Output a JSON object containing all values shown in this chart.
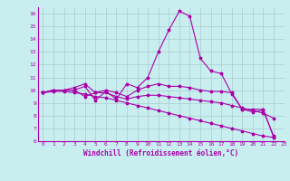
{
  "background_color": "#c8eef0",
  "grid_color": "#aacccc",
  "line_color": "#aa00aa",
  "marker": "*",
  "xlabel": "Windchill (Refroidissement éolien,°C)",
  "xlim": [
    -0.5,
    23
  ],
  "ylim": [
    6,
    16.5
  ],
  "xticks": [
    0,
    1,
    2,
    3,
    4,
    5,
    6,
    7,
    8,
    9,
    10,
    11,
    12,
    13,
    14,
    15,
    16,
    17,
    18,
    19,
    20,
    21,
    22,
    23
  ],
  "yticks": [
    6,
    7,
    8,
    9,
    10,
    11,
    12,
    13,
    14,
    15,
    16
  ],
  "series": [
    {
      "x": [
        0,
        1,
        2,
        3,
        4,
        5,
        6,
        7,
        8,
        9,
        10,
        11,
        12,
        13,
        14,
        15,
        16,
        17,
        18,
        19,
        20,
        21,
        22
      ],
      "y": [
        9.8,
        10.0,
        10.0,
        10.0,
        10.3,
        9.2,
        9.9,
        9.3,
        10.5,
        10.2,
        11.0,
        13.0,
        14.7,
        16.2,
        15.8,
        12.5,
        11.5,
        11.3,
        9.7,
        8.5,
        8.5,
        8.5,
        6.3
      ]
    },
    {
      "x": [
        0,
        1,
        2,
        3,
        4,
        5,
        6,
        7,
        8,
        9,
        10,
        11,
        12,
        13,
        14,
        15,
        16,
        17,
        18,
        19,
        20,
        21,
        22
      ],
      "y": [
        9.8,
        10.0,
        10.0,
        10.2,
        10.5,
        9.8,
        10.0,
        9.8,
        9.5,
        10.0,
        10.3,
        10.5,
        10.3,
        10.3,
        10.2,
        10.0,
        9.9,
        9.9,
        9.8,
        8.5,
        8.3,
        8.4,
        6.4
      ]
    },
    {
      "x": [
        0,
        1,
        2,
        3,
        4,
        5,
        6,
        7,
        8,
        9,
        10,
        11,
        12,
        13,
        14,
        15,
        16,
        17,
        18,
        19,
        20,
        21,
        22
      ],
      "y": [
        9.8,
        10.0,
        10.0,
        10.0,
        9.5,
        9.8,
        9.8,
        9.5,
        9.3,
        9.5,
        9.6,
        9.6,
        9.5,
        9.4,
        9.3,
        9.2,
        9.1,
        9.0,
        8.8,
        8.6,
        8.4,
        8.2,
        7.8
      ]
    },
    {
      "x": [
        0,
        1,
        2,
        3,
        4,
        5,
        6,
        7,
        8,
        9,
        10,
        11,
        12,
        13,
        14,
        15,
        16,
        17,
        18,
        19,
        20,
        21,
        22
      ],
      "y": [
        9.8,
        9.9,
        9.9,
        9.8,
        9.7,
        9.5,
        9.4,
        9.2,
        9.0,
        8.8,
        8.6,
        8.4,
        8.2,
        8.0,
        7.8,
        7.6,
        7.4,
        7.2,
        7.0,
        6.8,
        6.6,
        6.4,
        6.3
      ]
    }
  ]
}
